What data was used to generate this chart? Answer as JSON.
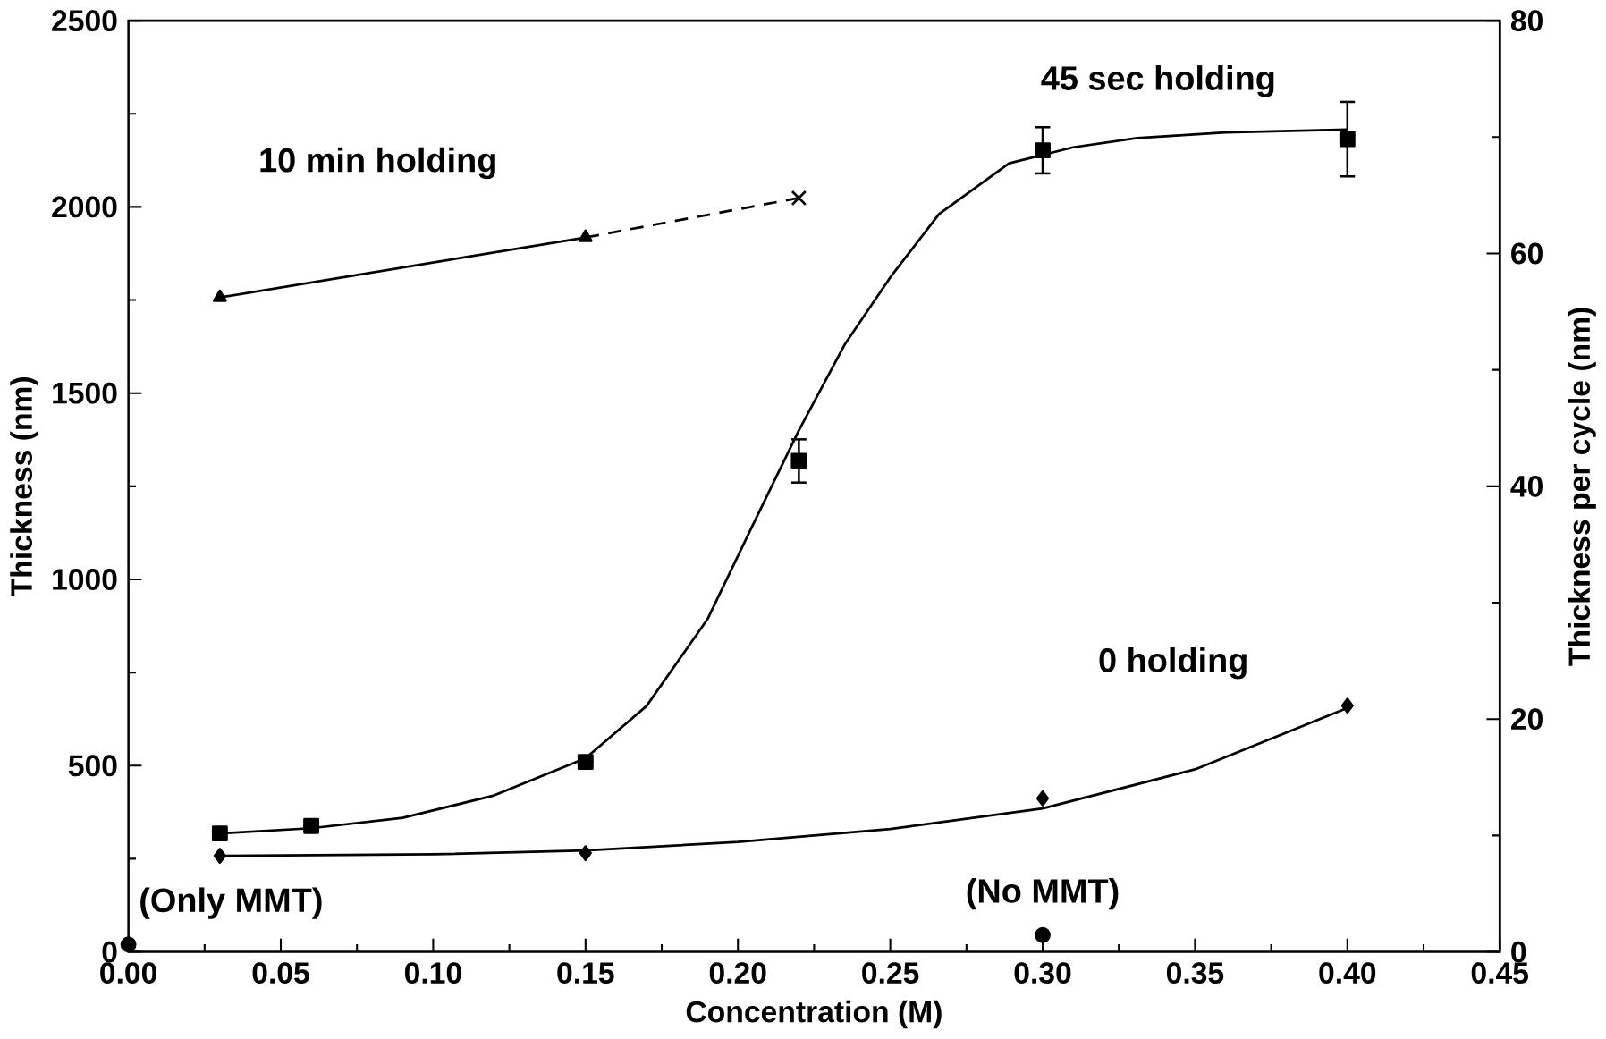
{
  "chart_data": {
    "type": "scatter",
    "xlabel": "Concentration (M)",
    "ylabel": "Thickness (nm)",
    "y2label": "Thickness per cycle (nm)",
    "xlim": [
      0,
      0.45
    ],
    "xticks": [
      {
        "value": 0,
        "label": "0.00"
      },
      {
        "value": 0.05,
        "label": "0.05"
      },
      {
        "value": 0.1,
        "label": "0.10"
      },
      {
        "value": 0.15,
        "label": "0.15"
      },
      {
        "value": 0.2,
        "label": "0.20"
      },
      {
        "value": 0.25,
        "label": "0.25"
      },
      {
        "value": 0.3,
        "label": "0.30"
      },
      {
        "value": 0.35,
        "label": "0.35"
      },
      {
        "value": 0.4,
        "label": "0.40"
      },
      {
        "value": 0.45,
        "label": "0.45"
      }
    ],
    "ylim": [
      0,
      2500
    ],
    "yticks": [
      0,
      500,
      1000,
      1500,
      2000,
      2500
    ],
    "y2lim": [
      0,
      80
    ],
    "y2ticks": [
      0,
      20,
      40,
      60,
      80
    ],
    "grid": false,
    "legend": false,
    "series": [
      {
        "name": "45 sec holding",
        "marker": "square",
        "color": "#000000",
        "x": [
          0.03,
          0.06,
          0.15,
          0.22,
          0.3,
          0.4
        ],
        "values": [
          318,
          338,
          510,
          1318,
          2152,
          2182
        ],
        "errors": [
          null,
          null,
          null,
          58,
          62,
          100
        ]
      },
      {
        "type": "line",
        "marker": "none",
        "line_style": "solid",
        "color": "#000000",
        "x": [
          0.03,
          0.06,
          0.09,
          0.12,
          0.15,
          0.17,
          0.19,
          0.205,
          0.22,
          0.235,
          0.25,
          0.266,
          0.289,
          0.31,
          0.331,
          0.36,
          0.4
        ],
        "values": [
          318,
          332,
          360,
          420,
          520,
          660,
          893,
          1148,
          1400,
          1630,
          1811,
          1981,
          2117,
          2160,
          2185,
          2200,
          2208
        ]
      },
      {
        "name": "0 holding",
        "marker": "diamond",
        "color": "#000000",
        "x": [
          0.03,
          0.15,
          0.3,
          0.4
        ],
        "values": [
          258,
          265,
          412,
          661
        ]
      },
      {
        "type": "line",
        "marker": "none",
        "line_style": "solid",
        "color": "#000000",
        "x": [
          0.03,
          0.1,
          0.15,
          0.2,
          0.25,
          0.3,
          0.35,
          0.4
        ],
        "values": [
          258,
          262,
          272,
          295,
          330,
          385,
          490,
          655
        ]
      },
      {
        "name": "10 min holding",
        "type": "line",
        "marker": "triangle",
        "line_style": "solid",
        "color": "#000000",
        "x": [
          0.03,
          0.15
        ],
        "values": [
          1757,
          1918
        ]
      },
      {
        "type": "line",
        "marker": "none",
        "line_style": "dashed",
        "color": "#000000",
        "x": [
          0.22,
          0.15
        ],
        "values": [
          2024,
          1918
        ]
      },
      {
        "marker": "cross",
        "color": "#000000",
        "x": [
          0.22
        ],
        "values": [
          2024
        ]
      },
      {
        "marker": "circle",
        "color": "#000000",
        "x": [
          0.0,
          0.3
        ],
        "values": [
          20,
          45
        ],
        "value_labels": [
          "(Only MMT)",
          "(No MMT)"
        ]
      }
    ]
  }
}
